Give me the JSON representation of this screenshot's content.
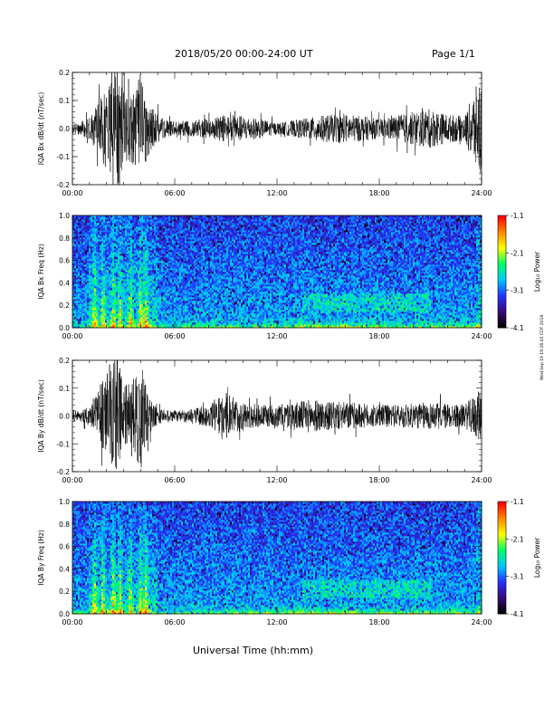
{
  "header": {
    "title": "2018/05/20  00:00-24:00 UT",
    "page": "Page 1/1"
  },
  "footer": {
    "xlabel": "Universal Time (hh:mm)",
    "stamp": "Wed Sep 19 19:26:45 CDT 2018"
  },
  "colors": {
    "trace": "#000000",
    "colormap": [
      "#000000",
      "#3a0a7a",
      "#2233ff",
      "#00c8ff",
      "#00ff66",
      "#ffff00",
      "#ff8800",
      "#ff0000"
    ]
  },
  "chart_data": [
    {
      "type": "line",
      "ylabel": "IQA Bx dB/dt (nT/sec)",
      "x_ticks": [
        "00:00",
        "06:00",
        "12:00",
        "18:00",
        "24:00"
      ],
      "xlim": [
        0,
        24
      ],
      "ylim": [
        -0.2,
        0.2
      ],
      "y_ticks": [
        "0.2",
        "0.1",
        "0.0",
        "-0.1",
        "-0.2"
      ],
      "series": [
        {
          "x": [
            0,
            0.5,
            1,
            1.5,
            2,
            2.5,
            3,
            3.5,
            4,
            4.5,
            5,
            5.5,
            6,
            7,
            8,
            9,
            10,
            11,
            12,
            13,
            14,
            15,
            16,
            17,
            18,
            19,
            20,
            21,
            22,
            23,
            24
          ],
          "amplitude": [
            0.02,
            0.025,
            0.04,
            0.09,
            0.15,
            0.25,
            0.14,
            0.12,
            0.2,
            0.09,
            0.05,
            0.03,
            0.025,
            0.03,
            0.035,
            0.05,
            0.045,
            0.035,
            0.02,
            0.03,
            0.04,
            0.05,
            0.05,
            0.045,
            0.035,
            0.045,
            0.06,
            0.07,
            0.05,
            0.045,
            0.2
          ]
        }
      ]
    },
    {
      "type": "heatmap",
      "ylabel": "IQA Bx Freq (Hz)",
      "x_ticks": [
        "00:00",
        "06:00",
        "12:00",
        "18:00",
        "24:00"
      ],
      "xlim": [
        0,
        24
      ],
      "ylim": [
        0,
        1.0
      ],
      "y_ticks": [
        "1.0",
        "0.8",
        "0.6",
        "0.4",
        "0.2",
        "0.0"
      ],
      "colorbar": {
        "label": "Log₁₀ Power",
        "ticks": [
          "-1.1",
          "-2.1",
          "-3.1",
          "-4.1"
        ],
        "range": [
          -4.1,
          -1.1
        ]
      },
      "bursts_hours": [
        1.3,
        1.8,
        2.4,
        2.8,
        3.4,
        4.0,
        4.3
      ],
      "enhanced_band": {
        "hours": [
          13.5,
          21
        ],
        "freq_hz": [
          0.15,
          0.3
        ]
      }
    },
    {
      "type": "line",
      "ylabel": "IQA By dB/dt (nT/sec)",
      "x_ticks": [
        "00:00",
        "06:00",
        "12:00",
        "18:00",
        "24:00"
      ],
      "xlim": [
        0,
        24
      ],
      "ylim": [
        -0.2,
        0.2
      ],
      "y_ticks": [
        "0.2",
        "0.1",
        "0.0",
        "-0.1",
        "-0.2"
      ],
      "series": [
        {
          "x": [
            0,
            0.5,
            1,
            1.5,
            2,
            2.5,
            3,
            3.5,
            4,
            4.5,
            5,
            5.5,
            6,
            7,
            8,
            9,
            10,
            11,
            12,
            13,
            14,
            15,
            16,
            17,
            18,
            19,
            20,
            21,
            22,
            23,
            24
          ],
          "amplitude": [
            0.02,
            0.02,
            0.035,
            0.1,
            0.15,
            0.25,
            0.12,
            0.12,
            0.2,
            0.06,
            0.03,
            0.02,
            0.02,
            0.025,
            0.04,
            0.08,
            0.05,
            0.04,
            0.04,
            0.05,
            0.06,
            0.05,
            0.05,
            0.045,
            0.04,
            0.04,
            0.045,
            0.05,
            0.045,
            0.04,
            0.1
          ]
        }
      ]
    },
    {
      "type": "heatmap",
      "ylabel": "IQA By Freq (Hz)",
      "x_ticks": [
        "00:00",
        "06:00",
        "12:00",
        "18:00",
        "24:00"
      ],
      "xlim": [
        0,
        24
      ],
      "ylim": [
        0,
        1.0
      ],
      "y_ticks": [
        "1.0",
        "0.8",
        "0.6",
        "0.4",
        "0.2",
        "0.0"
      ],
      "colorbar": {
        "label": "Log₁₀ Power",
        "ticks": [
          "-1.1",
          "-2.1",
          "-3.1",
          "-4.1"
        ],
        "range": [
          -4.1,
          -1.1
        ]
      },
      "bursts_hours": [
        1.3,
        1.8,
        2.4,
        2.8,
        3.4,
        4.0,
        4.3
      ],
      "enhanced_band": {
        "hours": [
          13.5,
          21
        ],
        "freq_hz": [
          0.15,
          0.3
        ]
      }
    }
  ]
}
